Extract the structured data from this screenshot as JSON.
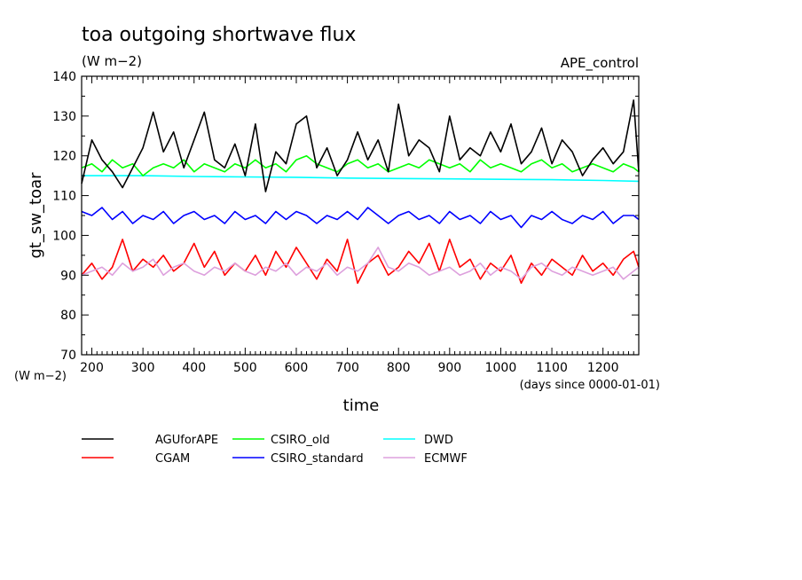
{
  "chart_data": {
    "type": "line",
    "title": "toa outgoing shortwave flux",
    "units": "(W m−2)",
    "run_label": "APE_control",
    "xlabel": "time",
    "x_units": "(days since 0000-01-01)",
    "ylabel": "gt_sw_toar",
    "y_units": "(W m−2)",
    "xlim": [
      180,
      1270
    ],
    "ylim": [
      70,
      140
    ],
    "x_ticks": [
      200,
      300,
      400,
      500,
      600,
      700,
      800,
      900,
      1000,
      1100,
      1200
    ],
    "y_ticks": [
      70,
      80,
      90,
      100,
      110,
      120,
      130,
      140
    ],
    "grid": false,
    "legend_position": "bottom",
    "series": [
      {
        "name": "AGUforAPE",
        "color": "#000000",
        "x": [
          180,
          200,
          220,
          240,
          260,
          280,
          300,
          320,
          340,
          360,
          380,
          400,
          420,
          440,
          460,
          480,
          500,
          520,
          540,
          560,
          580,
          600,
          620,
          640,
          660,
          680,
          700,
          720,
          740,
          760,
          780,
          800,
          820,
          840,
          860,
          880,
          900,
          920,
          940,
          960,
          980,
          1000,
          1020,
          1040,
          1060,
          1080,
          1100,
          1120,
          1140,
          1160,
          1180,
          1200,
          1220,
          1240,
          1260,
          1270
        ],
        "y": [
          113,
          124,
          119,
          116,
          112,
          117,
          122,
          131,
          121,
          126,
          117,
          124,
          131,
          119,
          117,
          123,
          115,
          128,
          111,
          121,
          118,
          128,
          130,
          117,
          122,
          115,
          119,
          126,
          119,
          124,
          116,
          133,
          120,
          124,
          122,
          116,
          130,
          119,
          122,
          120,
          126,
          121,
          128,
          118,
          121,
          127,
          118,
          124,
          121,
          115,
          119,
          122,
          118,
          121,
          134,
          116
        ]
      },
      {
        "name": "CGAM",
        "color": "#ff0000",
        "x": [
          180,
          200,
          220,
          240,
          260,
          280,
          300,
          320,
          340,
          360,
          380,
          400,
          420,
          440,
          460,
          480,
          500,
          520,
          540,
          560,
          580,
          600,
          620,
          640,
          660,
          680,
          700,
          720,
          740,
          760,
          780,
          800,
          820,
          840,
          860,
          880,
          900,
          920,
          940,
          960,
          980,
          1000,
          1020,
          1040,
          1060,
          1080,
          1100,
          1120,
          1140,
          1160,
          1180,
          1200,
          1220,
          1240,
          1260,
          1270
        ],
        "y": [
          90,
          93,
          89,
          92,
          99,
          91,
          94,
          92,
          95,
          91,
          93,
          98,
          92,
          96,
          90,
          93,
          91,
          95,
          90,
          96,
          92,
          97,
          93,
          89,
          94,
          91,
          99,
          88,
          93,
          95,
          90,
          92,
          96,
          93,
          98,
          91,
          99,
          92,
          94,
          89,
          93,
          91,
          95,
          88,
          93,
          90,
          94,
          92,
          90,
          95,
          91,
          93,
          90,
          94,
          96,
          92
        ]
      },
      {
        "name": "CSIRO_old",
        "color": "#00ff00",
        "x": [
          180,
          200,
          220,
          240,
          260,
          280,
          300,
          320,
          340,
          360,
          380,
          400,
          420,
          440,
          460,
          480,
          500,
          520,
          540,
          560,
          580,
          600,
          620,
          640,
          660,
          680,
          700,
          720,
          740,
          760,
          780,
          800,
          820,
          840,
          860,
          880,
          900,
          920,
          940,
          960,
          980,
          1000,
          1020,
          1040,
          1060,
          1080,
          1100,
          1120,
          1140,
          1160,
          1180,
          1200,
          1220,
          1240,
          1260,
          1270
        ],
        "y": [
          117,
          118,
          116,
          119,
          117,
          118,
          115,
          117,
          118,
          117,
          119,
          116,
          118,
          117,
          116,
          118,
          117,
          119,
          117,
          118,
          116,
          119,
          120,
          118,
          117,
          116,
          118,
          119,
          117,
          118,
          116,
          117,
          118,
          117,
          119,
          118,
          117,
          118,
          116,
          119,
          117,
          118,
          117,
          116,
          118,
          119,
          117,
          118,
          116,
          117,
          118,
          117,
          116,
          118,
          117,
          116
        ]
      },
      {
        "name": "CSIRO_standard",
        "color": "#0000ff",
        "x": [
          180,
          200,
          220,
          240,
          260,
          280,
          300,
          320,
          340,
          360,
          380,
          400,
          420,
          440,
          460,
          480,
          500,
          520,
          540,
          560,
          580,
          600,
          620,
          640,
          660,
          680,
          700,
          720,
          740,
          760,
          780,
          800,
          820,
          840,
          860,
          880,
          900,
          920,
          940,
          960,
          980,
          1000,
          1020,
          1040,
          1060,
          1080,
          1100,
          1120,
          1140,
          1160,
          1180,
          1200,
          1220,
          1240,
          1260,
          1270
        ],
        "y": [
          106,
          105,
          107,
          104,
          106,
          103,
          105,
          104,
          106,
          103,
          105,
          106,
          104,
          105,
          103,
          106,
          104,
          105,
          103,
          106,
          104,
          106,
          105,
          103,
          105,
          104,
          106,
          104,
          107,
          105,
          103,
          105,
          106,
          104,
          105,
          103,
          106,
          104,
          105,
          103,
          106,
          104,
          105,
          102,
          105,
          104,
          106,
          104,
          103,
          105,
          104,
          106,
          103,
          105,
          105,
          104
        ]
      },
      {
        "name": "DWD",
        "color": "#00ffff",
        "x": [
          180,
          300,
          400,
          500,
          600,
          700,
          800,
          900,
          1000,
          1100,
          1200,
          1270
        ],
        "y": [
          115,
          115,
          114.8,
          114.7,
          114.6,
          114.4,
          114.3,
          114.2,
          114.1,
          114,
          113.8,
          113.6
        ]
      },
      {
        "name": "ECMWF",
        "color": "#dda0dd",
        "x": [
          180,
          200,
          220,
          240,
          260,
          280,
          300,
          320,
          340,
          360,
          380,
          400,
          420,
          440,
          460,
          480,
          500,
          520,
          540,
          560,
          580,
          600,
          620,
          640,
          660,
          680,
          700,
          720,
          740,
          760,
          780,
          800,
          820,
          840,
          860,
          880,
          900,
          920,
          940,
          960,
          980,
          1000,
          1020,
          1040,
          1060,
          1080,
          1100,
          1120,
          1140,
          1160,
          1180,
          1200,
          1220,
          1240,
          1260,
          1270
        ],
        "y": [
          90,
          91,
          92,
          90,
          93,
          91,
          92,
          94,
          90,
          92,
          93,
          91,
          90,
          92,
          91,
          93,
          91,
          90,
          92,
          91,
          93,
          90,
          92,
          91,
          93,
          90,
          92,
          91,
          93,
          97,
          92,
          91,
          93,
          92,
          90,
          91,
          92,
          90,
          91,
          93,
          90,
          92,
          91,
          89,
          92,
          93,
          91,
          90,
          92,
          91,
          90,
          91,
          92,
          89,
          91,
          92
        ]
      }
    ]
  }
}
